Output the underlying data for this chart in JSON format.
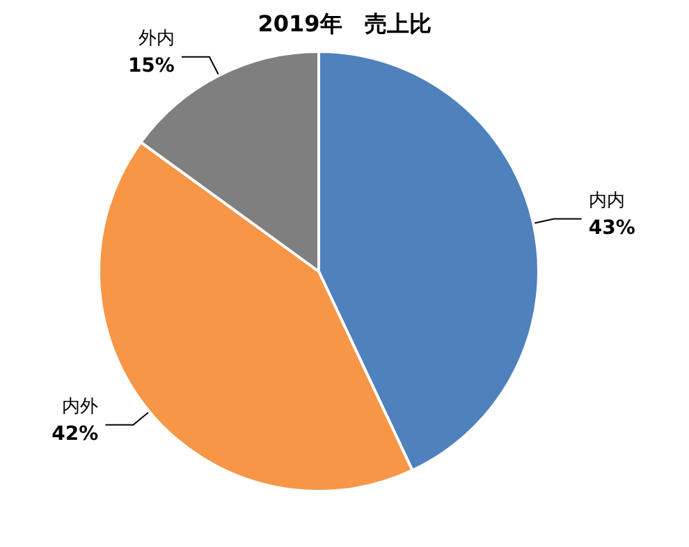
{
  "chart_data": {
    "type": "pie",
    "title": "2019年　売上比",
    "categories": [
      "内内",
      "内外",
      "外内"
    ],
    "values": [
      43,
      42,
      15
    ],
    "value_labels": [
      "43%",
      "42%",
      "15%"
    ],
    "colors": [
      "#4f81bd",
      "#f79646",
      "#7f7f7f"
    ]
  }
}
